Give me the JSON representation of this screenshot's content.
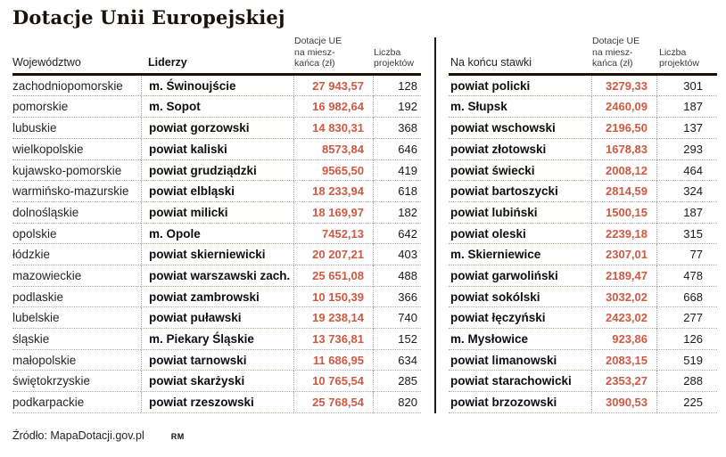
{
  "title": "Dotacje Unii Europejskiej",
  "accent_color": "#cd5a43",
  "rule_color": "#200f07",
  "dotted_color": "#b3a89d",
  "left_table": {
    "headers": {
      "region": "Województwo",
      "leader": "Liderzy",
      "amount": "Dotacje UE\nna miesz-\nkańca (zł)",
      "count": "Liczba\nprojektów"
    },
    "rows": [
      {
        "region": "zachodniopomorskie",
        "leader": "m. Świnoujście",
        "amount": "27 943,57",
        "count": "128"
      },
      {
        "region": "pomorskie",
        "leader": "m. Sopot",
        "amount": "16 982,64",
        "count": "192"
      },
      {
        "region": "lubuskie",
        "leader": "powiat gorzowski",
        "amount": "14 830,31",
        "count": "368"
      },
      {
        "region": "wielkopolskie",
        "leader": "powiat kaliski",
        "amount": "8573,84",
        "count": "646"
      },
      {
        "region": "kujawsko-pomorskie",
        "leader": "powiat grudziądzki",
        "amount": "9565,50",
        "count": "419"
      },
      {
        "region": "warmińsko-mazurskie",
        "leader": "powiat elbląski",
        "amount": "18 233,94",
        "count": "618"
      },
      {
        "region": "dolnośląskie",
        "leader": "powiat milicki",
        "amount": "18 169,97",
        "count": "182"
      },
      {
        "region": "opolskie",
        "leader": "m. Opole",
        "amount": "7452,13",
        "count": "642"
      },
      {
        "region": "łódzkie",
        "leader": "powiat skierniewicki",
        "amount": "20 207,21",
        "count": "403"
      },
      {
        "region": "mazowieckie",
        "leader": "powiat warszawski zach.",
        "amount": "25 651,08",
        "count": "488"
      },
      {
        "region": "podlaskie",
        "leader": "powiat zambrowski",
        "amount": "10 150,39",
        "count": "366"
      },
      {
        "region": "lubelskie",
        "leader": "powiat puławski",
        "amount": "19 238,14",
        "count": "740"
      },
      {
        "region": "śląskie",
        "leader": "m. Piekary Śląskie",
        "amount": "13 736,81",
        "count": "152"
      },
      {
        "region": "małopolskie",
        "leader": "powiat tarnowski",
        "amount": "11 686,95",
        "count": "634"
      },
      {
        "region": "świętokrzyskie",
        "leader": "powiat skarżyski",
        "amount": "10 765,54",
        "count": "285"
      },
      {
        "region": "podkarpackie",
        "leader": "powiat rzeszowski",
        "amount": "25 768,54",
        "count": "820"
      }
    ]
  },
  "right_table": {
    "headers": {
      "name": "Na końcu stawki",
      "amount": "Dotacje UE\nna miesz-\nkańca (zł)",
      "count": "Liczba\nprojektów"
    },
    "rows": [
      {
        "name": "powiat policki",
        "amount": "3279,33",
        "count": "301"
      },
      {
        "name": "m. Słupsk",
        "amount": "2460,09",
        "count": "187"
      },
      {
        "name": "powiat wschowski",
        "amount": "2196,50",
        "count": "137"
      },
      {
        "name": "powiat złotowski",
        "amount": "1678,83",
        "count": "293"
      },
      {
        "name": "powiat świecki",
        "amount": "2008,12",
        "count": "464"
      },
      {
        "name": "powiat bartoszycki",
        "amount": "2814,59",
        "count": "324"
      },
      {
        "name": "powiat lubiński",
        "amount": "1500,15",
        "count": "187"
      },
      {
        "name": "powiat oleski",
        "amount": "2239,18",
        "count": "315"
      },
      {
        "name": "m. Skierniewice",
        "amount": "2307,01",
        "count": "77"
      },
      {
        "name": "powiat garwoliński",
        "amount": "2189,47",
        "count": "478"
      },
      {
        "name": "powiat sokólski",
        "amount": "3032,02",
        "count": "668"
      },
      {
        "name": "powiat łęczyński",
        "amount": "2423,02",
        "count": "277"
      },
      {
        "name": "m. Mysłowice",
        "amount": "923,86",
        "count": "126"
      },
      {
        "name": "powiat limanowski",
        "amount": "2083,15",
        "count": "519"
      },
      {
        "name": "powiat starachowicki",
        "amount": "2353,27",
        "count": "288"
      },
      {
        "name": "powiat brzozowski",
        "amount": "3090,53",
        "count": "225"
      }
    ]
  },
  "footer": {
    "source": "Źródło: MapaDotacji.gov.pl",
    "initials": "RM"
  },
  "chart_data": [
    {
      "type": "table",
      "name": "Liderzy",
      "columns": [
        "Województwo",
        "Liderzy",
        "Dotacje UE na mieszkańca (zł)",
        "Liczba projektów"
      ],
      "rows": [
        [
          "zachodniopomorskie",
          "m. Świnoujście",
          27943.57,
          128
        ],
        [
          "pomorskie",
          "m. Sopot",
          16982.64,
          192
        ],
        [
          "lubuskie",
          "powiat gorzowski",
          14830.31,
          368
        ],
        [
          "wielkopolskie",
          "powiat kaliski",
          8573.84,
          646
        ],
        [
          "kujawsko-pomorskie",
          "powiat grudziądzki",
          9565.5,
          419
        ],
        [
          "warmińsko-mazurskie",
          "powiat elbląski",
          18233.94,
          618
        ],
        [
          "dolnośląskie",
          "powiat milicki",
          18169.97,
          182
        ],
        [
          "opolskie",
          "m. Opole",
          7452.13,
          642
        ],
        [
          "łódzkie",
          "powiat skierniewicki",
          20207.21,
          403
        ],
        [
          "mazowieckie",
          "powiat warszawski zach.",
          25651.08,
          488
        ],
        [
          "podlaskie",
          "powiat zambrowski",
          10150.39,
          366
        ],
        [
          "lubelskie",
          "powiat puławski",
          19238.14,
          740
        ],
        [
          "śląskie",
          "m. Piekary Śląskie",
          13736.81,
          152
        ],
        [
          "małopolskie",
          "powiat tarnowski",
          11686.95,
          634
        ],
        [
          "świętokrzyskie",
          "powiat skarżyski",
          10765.54,
          285
        ],
        [
          "podkarpackie",
          "powiat rzeszowski",
          25768.54,
          820
        ]
      ]
    },
    {
      "type": "table",
      "name": "Na końcu stawki",
      "columns": [
        "Na końcu stawki",
        "Dotacje UE na mieszkańca (zł)",
        "Liczba projektów"
      ],
      "rows": [
        [
          "powiat policki",
          3279.33,
          301
        ],
        [
          "m. Słupsk",
          2460.09,
          187
        ],
        [
          "powiat wschowski",
          2196.5,
          137
        ],
        [
          "powiat złotowski",
          1678.83,
          293
        ],
        [
          "powiat świecki",
          2008.12,
          464
        ],
        [
          "powiat bartoszycki",
          2814.59,
          324
        ],
        [
          "powiat lubiński",
          1500.15,
          187
        ],
        [
          "powiat oleski",
          2239.18,
          315
        ],
        [
          "m. Skierniewice",
          2307.01,
          77
        ],
        [
          "powiat garwoliński",
          2189.47,
          478
        ],
        [
          "powiat sokólski",
          3032.02,
          668
        ],
        [
          "powiat łęczyński",
          2423.02,
          277
        ],
        [
          "m. Mysłowice",
          923.86,
          126
        ],
        [
          "powiat limanowski",
          2083.15,
          519
        ],
        [
          "powiat starachowicki",
          2353.27,
          288
        ],
        [
          "powiat brzozowski",
          3090.53,
          225
        ]
      ]
    }
  ]
}
